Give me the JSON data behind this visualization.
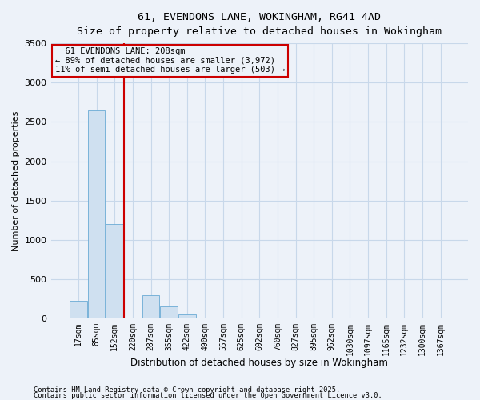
{
  "title1": "61, EVENDONS LANE, WOKINGHAM, RG41 4AD",
  "title2": "Size of property relative to detached houses in Wokingham",
  "xlabel": "Distribution of detached houses by size in Wokingham",
  "ylabel": "Number of detached properties",
  "categories": [
    "17sqm",
    "85sqm",
    "152sqm",
    "220sqm",
    "287sqm",
    "355sqm",
    "422sqm",
    "490sqm",
    "557sqm",
    "625sqm",
    "692sqm",
    "760sqm",
    "827sqm",
    "895sqm",
    "962sqm",
    "1030sqm",
    "1097sqm",
    "1165sqm",
    "1232sqm",
    "1300sqm",
    "1367sqm"
  ],
  "values": [
    230,
    2650,
    1200,
    0,
    300,
    150,
    50,
    5,
    0,
    0,
    0,
    0,
    0,
    0,
    0,
    0,
    0,
    0,
    0,
    0,
    0
  ],
  "bar_color": "#cfe0f0",
  "bar_edge_color": "#6aaad4",
  "grid_color": "#c8d8ea",
  "vline_color": "#cc0000",
  "vline_x_index": 3,
  "annotation_text": "  61 EVENDONS LANE: 208sqm\n← 89% of detached houses are smaller (3,972)\n11% of semi-detached houses are larger (503) →",
  "annotation_box_color": "#cc0000",
  "ylim": [
    0,
    3500
  ],
  "yticks": [
    0,
    500,
    1000,
    1500,
    2000,
    2500,
    3000,
    3500
  ],
  "footnote1": "Contains HM Land Registry data © Crown copyright and database right 2025.",
  "footnote2": "Contains public sector information licensed under the Open Government Licence v3.0.",
  "bg_color": "#edf2f9"
}
